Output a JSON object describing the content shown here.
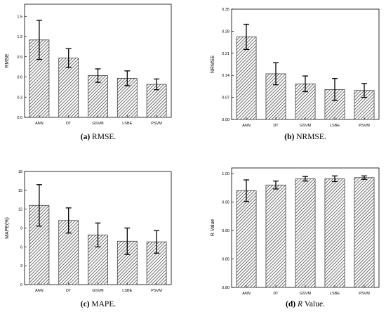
{
  "chart_data": [
    {
      "id": "a",
      "type": "bar",
      "caption": {
        "label": "(a)",
        "text": "RMSE."
      },
      "ylabel": "RMSE",
      "categories": [
        "ANN",
        "DT",
        "GSVM",
        "LSBE",
        "PSVM"
      ],
      "values": [
        1.15,
        0.88,
        0.62,
        0.58,
        0.49
      ],
      "errors": [
        0.29,
        0.14,
        0.1,
        0.11,
        0.08
      ],
      "ylim": [
        0,
        1.68
      ],
      "yticks": [
        0.0,
        0.3,
        0.6,
        0.9,
        1.2,
        1.5
      ],
      "ytick_labels": [
        "0.0",
        "0.3",
        "0.6",
        "0.9",
        "1.2",
        "1.5"
      ],
      "pattern": "diagonal-hatch",
      "bar_color": "#555555"
    },
    {
      "id": "b",
      "type": "bar",
      "caption": {
        "label": "(b)",
        "text": "NRMSE."
      },
      "ylabel": "NRMSE",
      "categories": [
        "ANN",
        "DT",
        "GSVM",
        "LSBE",
        "PSVM"
      ],
      "values": [
        0.262,
        0.145,
        0.113,
        0.095,
        0.092
      ],
      "errors": [
        0.04,
        0.035,
        0.025,
        0.035,
        0.022
      ],
      "ylim": [
        0,
        0.35
      ],
      "yticks": [
        0.0,
        0.07,
        0.14,
        0.21,
        0.28,
        0.35
      ],
      "ytick_labels": [
        "0.00",
        "0.07",
        "0.14",
        "0.21",
        "0.28",
        "0.35"
      ],
      "pattern": "diagonal-hatch",
      "bar_color": "#555555"
    },
    {
      "id": "c",
      "type": "bar",
      "caption": {
        "label": "(c)",
        "text": "MAPE."
      },
      "ylabel": "MAPE(%)",
      "categories": [
        "ANN",
        "DT",
        "GSVM",
        "LSBE",
        "PSVM"
      ],
      "values": [
        12.6,
        10.2,
        7.9,
        6.9,
        6.8
      ],
      "errors": [
        3.3,
        2.0,
        1.9,
        2.1,
        1.8
      ],
      "ylim": [
        0,
        18
      ],
      "yticks": [
        0,
        3,
        6,
        9,
        12,
        15,
        18
      ],
      "ytick_labels": [
        "0",
        "3",
        "6",
        "9",
        "12",
        "15",
        "18"
      ],
      "pattern": "diagonal-hatch",
      "bar_color": "#555555"
    },
    {
      "id": "d",
      "type": "bar",
      "caption": {
        "label": "(d)",
        "italic": "R",
        "text": "Value."
      },
      "ylabel": "R Value",
      "categories": [
        "ANN",
        "DT",
        "GSVM",
        "LSBE",
        "PSVM"
      ],
      "values": [
        0.97,
        0.98,
        0.991,
        0.991,
        0.993
      ],
      "errors": [
        0.019,
        0.007,
        0.004,
        0.005,
        0.003
      ],
      "ylim": [
        0.8,
        1.01
      ],
      "yticks": [
        0.8,
        0.85,
        0.9,
        0.95,
        1.0
      ],
      "ytick_labels": [
        "0.80",
        "0.85",
        "0.90",
        "0.95",
        "1.00"
      ],
      "pattern": "diagonal-hatch",
      "bar_color": "#555555"
    }
  ]
}
